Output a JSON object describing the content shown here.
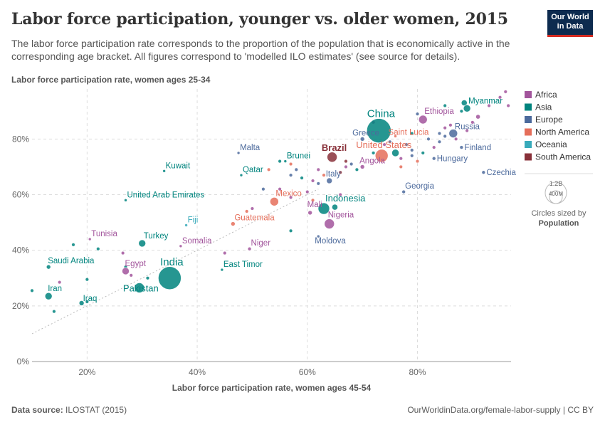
{
  "header": {
    "title": "Labor force participation, younger vs. older women, 2015",
    "subtitle": "The labor force participation rate corresponds to the proportion of the population that is economically active in the corresponding age bracket. All figures correspond to 'modelled ILO estimates' (see source for details).",
    "logo_line1": "Our World",
    "logo_line2": "in Data"
  },
  "footer": {
    "source_label": "Data source:",
    "source_value": "ILOSTAT (2015)",
    "url": "OurWorldinData.org/female-labor-supply | CC BY"
  },
  "colors": {
    "Africa": "#a2559c",
    "Asia": "#00847e",
    "Europe": "#4c6a9c",
    "North America": "#e56e5a",
    "Oceania": "#38aaba",
    "South America": "#883039"
  },
  "chart_data": {
    "type": "scatter",
    "title": "Labor force participation, younger vs. older women, 2015",
    "xlabel": "Labor force participation rate, women ages 45-54",
    "ylabel": "Labor force participation rate, women ages 25-34",
    "xlim": [
      10,
      97
    ],
    "ylim": [
      0,
      98
    ],
    "x_ticks": [
      "20%",
      "40%",
      "60%",
      "80%"
    ],
    "x_tick_values": [
      20,
      40,
      60,
      80
    ],
    "y_ticks": [
      "0%",
      "20%",
      "40%",
      "60%",
      "80%"
    ],
    "y_tick_values": [
      0,
      20,
      40,
      60,
      80
    ],
    "grid": true,
    "legend_position": "right",
    "legend": [
      "Africa",
      "Asia",
      "Europe",
      "North America",
      "Oceania",
      "South America"
    ],
    "size_legend": {
      "title": "Circles sized by",
      "variable": "Population",
      "big": "1.2B",
      "small": "400M"
    },
    "labeled_points": [
      {
        "name": "Myanmar",
        "continent": "Asia",
        "x": 89,
        "y": 91,
        "r": 5
      },
      {
        "name": "China",
        "continent": "Asia",
        "x": 73,
        "y": 83,
        "r": 17
      },
      {
        "name": "Ethiopia",
        "continent": "Africa",
        "x": 81,
        "y": 87,
        "r": 6
      },
      {
        "name": "Greece",
        "continent": "Europe",
        "x": 70,
        "y": 80,
        "r": 3
      },
      {
        "name": "Saint Lucia",
        "continent": "North America",
        "x": 76,
        "y": 81,
        "r": 2
      },
      {
        "name": "Russia",
        "continent": "Europe",
        "x": 86.5,
        "y": 82,
        "r": 6
      },
      {
        "name": "Finland",
        "continent": "Europe",
        "x": 88,
        "y": 77,
        "r": 2.5
      },
      {
        "name": "United States",
        "continent": "North America",
        "x": 73.5,
        "y": 74,
        "r": 9
      },
      {
        "name": "Brazil",
        "continent": "South America",
        "x": 64.5,
        "y": 73.5,
        "r": 7
      },
      {
        "name": "Angola",
        "continent": "Africa",
        "x": 70,
        "y": 70,
        "r": 3
      },
      {
        "name": "Hungary",
        "continent": "Europe",
        "x": 83,
        "y": 73,
        "r": 2.5
      },
      {
        "name": "Czechia",
        "continent": "Europe",
        "x": 92,
        "y": 68,
        "r": 2.5
      },
      {
        "name": "Malta",
        "continent": "Europe",
        "x": 47.5,
        "y": 75,
        "r": 2
      },
      {
        "name": "Brunei",
        "continent": "Asia",
        "x": 56,
        "y": 72,
        "r": 2
      },
      {
        "name": "Kuwait",
        "continent": "Asia",
        "x": 34,
        "y": 68.5,
        "r": 2
      },
      {
        "name": "Qatar",
        "continent": "Asia",
        "x": 48,
        "y": 67,
        "r": 2
      },
      {
        "name": "Italy",
        "continent": "Europe",
        "x": 64,
        "y": 65,
        "r": 4
      },
      {
        "name": "Georgia",
        "continent": "Europe",
        "x": 77.5,
        "y": 61,
        "r": 2.5
      },
      {
        "name": "United Arab Emirates",
        "continent": "Asia",
        "x": 27,
        "y": 58,
        "r": 2
      },
      {
        "name": "Mexico",
        "continent": "North America",
        "x": 54,
        "y": 57.5,
        "r": 6
      },
      {
        "name": "Indonesia",
        "continent": "Asia",
        "x": 63,
        "y": 55,
        "r": 8
      },
      {
        "name": "Fiji",
        "continent": "Oceania",
        "x": 38,
        "y": 49,
        "r": 2
      },
      {
        "name": "Guatemala",
        "continent": "North America",
        "x": 46.5,
        "y": 49.5,
        "r": 3
      },
      {
        "name": "Mali",
        "continent": "Africa",
        "x": 60.5,
        "y": 53.5,
        "r": 3
      },
      {
        "name": "Nigeria",
        "continent": "Africa",
        "x": 64,
        "y": 49.5,
        "r": 7
      },
      {
        "name": "Moldova",
        "continent": "Europe",
        "x": 62,
        "y": 45,
        "r": 2
      },
      {
        "name": "Tunisia",
        "continent": "Africa",
        "x": 20.5,
        "y": 44,
        "r": 2
      },
      {
        "name": "Turkey",
        "continent": "Asia",
        "x": 30,
        "y": 42.5,
        "r": 5
      },
      {
        "name": "Somalia",
        "continent": "Africa",
        "x": 37,
        "y": 41.5,
        "r": 2
      },
      {
        "name": "Niger",
        "continent": "Africa",
        "x": 49.5,
        "y": 40.5,
        "r": 2.5
      },
      {
        "name": "Saudi Arabia",
        "continent": "Asia",
        "x": 13,
        "y": 34,
        "r": 3
      },
      {
        "name": "India",
        "continent": "Asia",
        "x": 35,
        "y": 30,
        "r": 16
      },
      {
        "name": "East Timor",
        "continent": "Asia",
        "x": 44.5,
        "y": 33,
        "r": 2
      },
      {
        "name": "Egypt",
        "continent": "Africa",
        "x": 27,
        "y": 32.5,
        "r": 5
      },
      {
        "name": "Pakistan",
        "continent": "Asia",
        "x": 29.5,
        "y": 26.5,
        "r": 7
      },
      {
        "name": "Iran",
        "continent": "Asia",
        "x": 13,
        "y": 23.5,
        "r": 5
      },
      {
        "name": "Iraq",
        "continent": "Asia",
        "x": 19,
        "y": 21,
        "r": 3.5
      }
    ],
    "unlabeled_points": [
      {
        "continent": "Asia",
        "x": 10,
        "y": 25.5
      },
      {
        "continent": "Asia",
        "x": 14,
        "y": 18
      },
      {
        "continent": "Africa",
        "x": 15,
        "y": 28.5
      },
      {
        "continent": "Asia",
        "x": 17.5,
        "y": 42
      },
      {
        "continent": "Asia",
        "x": 22,
        "y": 40.5
      },
      {
        "continent": "Asia",
        "x": 20,
        "y": 21.5
      },
      {
        "continent": "Asia",
        "x": 20,
        "y": 29.5
      },
      {
        "continent": "Africa",
        "x": 26.5,
        "y": 39
      },
      {
        "continent": "Africa",
        "x": 28,
        "y": 31
      },
      {
        "continent": "Asia",
        "x": 31,
        "y": 30
      },
      {
        "continent": "Asia",
        "x": 27,
        "y": 34
      },
      {
        "continent": "Africa",
        "x": 45,
        "y": 39
      },
      {
        "continent": "Asia",
        "x": 57,
        "y": 47
      },
      {
        "continent": "Africa",
        "x": 50,
        "y": 55
      },
      {
        "continent": "North America",
        "x": 49,
        "y": 54
      },
      {
        "continent": "Europe",
        "x": 57,
        "y": 67
      },
      {
        "continent": "Europe",
        "x": 58,
        "y": 69
      },
      {
        "continent": "Asia",
        "x": 59,
        "y": 66
      },
      {
        "continent": "Africa",
        "x": 60,
        "y": 61
      },
      {
        "continent": "North America",
        "x": 61,
        "y": 58
      },
      {
        "continent": "Africa",
        "x": 61,
        "y": 65
      },
      {
        "continent": "Europe",
        "x": 62,
        "y": 64
      },
      {
        "continent": "Africa",
        "x": 62,
        "y": 69
      },
      {
        "continent": "North America",
        "x": 63,
        "y": 67
      },
      {
        "continent": "South America",
        "x": 66,
        "y": 68
      },
      {
        "continent": "Africa",
        "x": 67,
        "y": 70
      },
      {
        "continent": "Europe",
        "x": 68,
        "y": 71
      },
      {
        "continent": "Asia",
        "x": 69,
        "y": 69
      },
      {
        "continent": "South America",
        "x": 67,
        "y": 72
      },
      {
        "continent": "Africa",
        "x": 66,
        "y": 60
      },
      {
        "continent": "Asia",
        "x": 65,
        "y": 55.5,
        "r": 4
      },
      {
        "continent": "Asia",
        "x": 72,
        "y": 75
      },
      {
        "continent": "Africa",
        "x": 74,
        "y": 78
      },
      {
        "continent": "Europe",
        "x": 75,
        "y": 79
      },
      {
        "continent": "Asia",
        "x": 76,
        "y": 75,
        "r": 5
      },
      {
        "continent": "Europe",
        "x": 78,
        "y": 78
      },
      {
        "continent": "Africa",
        "x": 77,
        "y": 73
      },
      {
        "continent": "Europe",
        "x": 79,
        "y": 76
      },
      {
        "continent": "North America",
        "x": 80,
        "y": 72
      },
      {
        "continent": "Asia",
        "x": 81,
        "y": 75
      },
      {
        "continent": "Europe",
        "x": 82,
        "y": 80
      },
      {
        "continent": "Africa",
        "x": 83,
        "y": 77
      },
      {
        "continent": "Europe",
        "x": 84,
        "y": 79
      },
      {
        "continent": "Africa",
        "x": 85,
        "y": 84
      },
      {
        "continent": "Europe",
        "x": 85,
        "y": 81
      },
      {
        "continent": "Africa",
        "x": 86,
        "y": 85
      },
      {
        "continent": "Africa",
        "x": 87,
        "y": 80
      },
      {
        "continent": "Asia",
        "x": 88,
        "y": 90
      },
      {
        "continent": "Africa",
        "x": 89,
        "y": 83
      },
      {
        "continent": "Africa",
        "x": 90,
        "y": 86
      },
      {
        "continent": "Africa",
        "x": 91,
        "y": 88,
        "r": 3
      },
      {
        "continent": "Africa",
        "x": 93,
        "y": 92
      },
      {
        "continent": "Africa",
        "x": 95,
        "y": 95
      },
      {
        "continent": "Africa",
        "x": 96,
        "y": 97
      },
      {
        "continent": "Africa",
        "x": 96.5,
        "y": 92
      },
      {
        "continent": "Asia",
        "x": 88.5,
        "y": 93,
        "r": 4
      },
      {
        "continent": "Europe",
        "x": 84,
        "y": 82
      },
      {
        "continent": "Europe",
        "x": 80,
        "y": 89
      },
      {
        "continent": "Asia",
        "x": 85,
        "y": 92
      },
      {
        "continent": "North America",
        "x": 77,
        "y": 70
      },
      {
        "continent": "Europe",
        "x": 79,
        "y": 74
      },
      {
        "continent": "Asia",
        "x": 79,
        "y": 82
      },
      {
        "continent": "Africa",
        "x": 72,
        "y": 86
      },
      {
        "continent": "Asia",
        "x": 55,
        "y": 72
      },
      {
        "continent": "North America",
        "x": 57,
        "y": 71
      },
      {
        "continent": "Africa",
        "x": 55,
        "y": 62
      },
      {
        "continent": "Africa",
        "x": 57,
        "y": 59
      },
      {
        "continent": "North America",
        "x": 53,
        "y": 69
      },
      {
        "continent": "Europe",
        "x": 52,
        "y": 62
      }
    ]
  },
  "legend_items": [
    {
      "label": "Africa"
    },
    {
      "label": "Asia"
    },
    {
      "label": "Europe"
    },
    {
      "label": "North America"
    },
    {
      "label": "Oceania"
    },
    {
      "label": "South America"
    }
  ]
}
